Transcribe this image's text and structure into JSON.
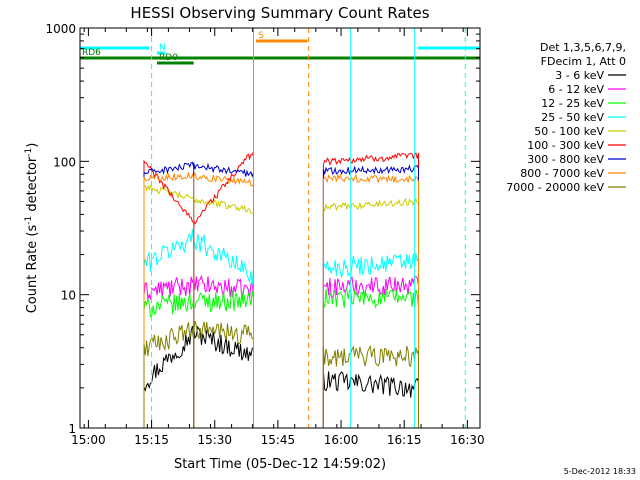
{
  "chart_data": {
    "type": "line",
    "title": "HESSI Observing Summary Count Rates",
    "xlabel": "Start Time (05-Dec-12 14:59:02)",
    "ylabel_main": "Count Rate (s",
    "ylabel_sup1": "-1",
    "ylabel_mid": " detector",
    "ylabel_sup2": "-1",
    "ylabel_end": ")",
    "yscale": "log",
    "ylim": [
      1,
      1000
    ],
    "xlim_minutes": [
      -1,
      94
    ],
    "x_ticks": [
      {
        "m": 1,
        "label": "15:00"
      },
      {
        "m": 16,
        "label": "15:15"
      },
      {
        "m": 31,
        "label": "15:30"
      },
      {
        "m": 46,
        "label": "15:45"
      },
      {
        "m": 61,
        "label": "16:00"
      },
      {
        "m": 76,
        "label": "16:15"
      },
      {
        "m": 91,
        "label": "16:30"
      }
    ],
    "y_ticks": [
      {
        "v": 1,
        "label": "1"
      },
      {
        "v": 10,
        "label": "10"
      },
      {
        "v": 100,
        "label": "100"
      },
      {
        "v": 1000,
        "label": "1000"
      }
    ],
    "footer_date": "5-Dec-2012 18:33",
    "legend_header": [
      "Det 1,3,5,6,7,9,",
      "FDecim 1, Att 0"
    ],
    "legend": [
      {
        "label": "3 - 6 keV",
        "color": "#000000"
      },
      {
        "label": "6 - 12 keV",
        "color": "#ff00ff"
      },
      {
        "label": "12 - 25 keV",
        "color": "#00ff00"
      },
      {
        "label": "25 - 50 keV",
        "color": "#00ffff"
      },
      {
        "label": "50 - 100 keV",
        "color": "#cccc00"
      },
      {
        "label": "100 - 300 keV",
        "color": "#ff0000"
      },
      {
        "label": "300 - 800 keV",
        "color": "#0000cc"
      },
      {
        "label": "800 - 7000 keV",
        "color": "#ff8800"
      },
      {
        "label": "7000 - 20000 keV",
        "color": "#808000"
      }
    ],
    "segments": [
      [
        14.2,
        26.0
      ],
      [
        26.0,
        40.2
      ],
      [
        56.8,
        79.4
      ]
    ],
    "series": [
      {
        "name": "3 - 6 keV",
        "color": "#000000",
        "values": [
          2.2,
          5.2,
          3.5,
          2.3,
          2.0
        ]
      },
      {
        "name": "6 - 12 keV",
        "color": "#ff00ff",
        "values": [
          10.5,
          12.0,
          10.8,
          11.5,
          12.0
        ]
      },
      {
        "name": "12 - 25 keV",
        "color": "#00ff00",
        "values": [
          8.0,
          9.0,
          9.2,
          9.5,
          9.5
        ]
      },
      {
        "name": "25 - 50 keV",
        "color": "#00ffff",
        "values": [
          17,
          27,
          14,
          16,
          18
        ]
      },
      {
        "name": "50 - 100 keV",
        "color": "#cccc00",
        "values": [
          65,
          52,
          43,
          45,
          50
        ]
      },
      {
        "name": "100 - 300 keV",
        "color": "#ff0000",
        "values": [
          100,
          35,
          120,
          100,
          110
        ]
      },
      {
        "name": "300 - 800 keV",
        "color": "#0000cc",
        "values": [
          82,
          93,
          80,
          85,
          88
        ]
      },
      {
        "name": "800 - 7000 keV",
        "color": "#ff8800",
        "values": [
          75,
          78,
          68,
          75,
          73
        ]
      },
      {
        "name": "7000 - 20000 keV",
        "color": "#808000",
        "values": [
          4.0,
          5.5,
          5.0,
          3.5,
          3.5
        ]
      }
    ],
    "flag_bars": [
      {
        "label": "",
        "color": "#00ffff",
        "m_start": -1,
        "m_end": 15.5,
        "y": 48
      },
      {
        "label": "",
        "color": "#00ffff",
        "m_start": 79.3,
        "m_end": 94,
        "y": 48
      },
      {
        "label": "N",
        "color": "#00ffff",
        "m_start": 17.3,
        "m_end": 19.3,
        "y": 53
      },
      {
        "label": "RD0",
        "color": "#008000",
        "m_start": 17.3,
        "m_end": 26.0,
        "y": 63
      },
      {
        "label": "RD6",
        "color": "#008000",
        "m_start": -1,
        "m_end": 94,
        "y": 58
      },
      {
        "label": "S",
        "color": "#ff8800",
        "m_start": 40.8,
        "m_end": 53.0,
        "y": 41
      }
    ],
    "vlines": [
      {
        "m": 16.0,
        "color": "#00ffff",
        "dash": true
      },
      {
        "m": 40.2,
        "color": "#c8a000",
        "dash": false
      },
      {
        "m": 53.3,
        "color": "#ff8800",
        "dash": true
      },
      {
        "m": 63.3,
        "color": "#00ffff",
        "dash": false
      },
      {
        "m": 78.5,
        "color": "#00ffff",
        "dash": false
      },
      {
        "m": 90.5,
        "color": "#00ffff",
        "dash": true
      }
    ]
  }
}
